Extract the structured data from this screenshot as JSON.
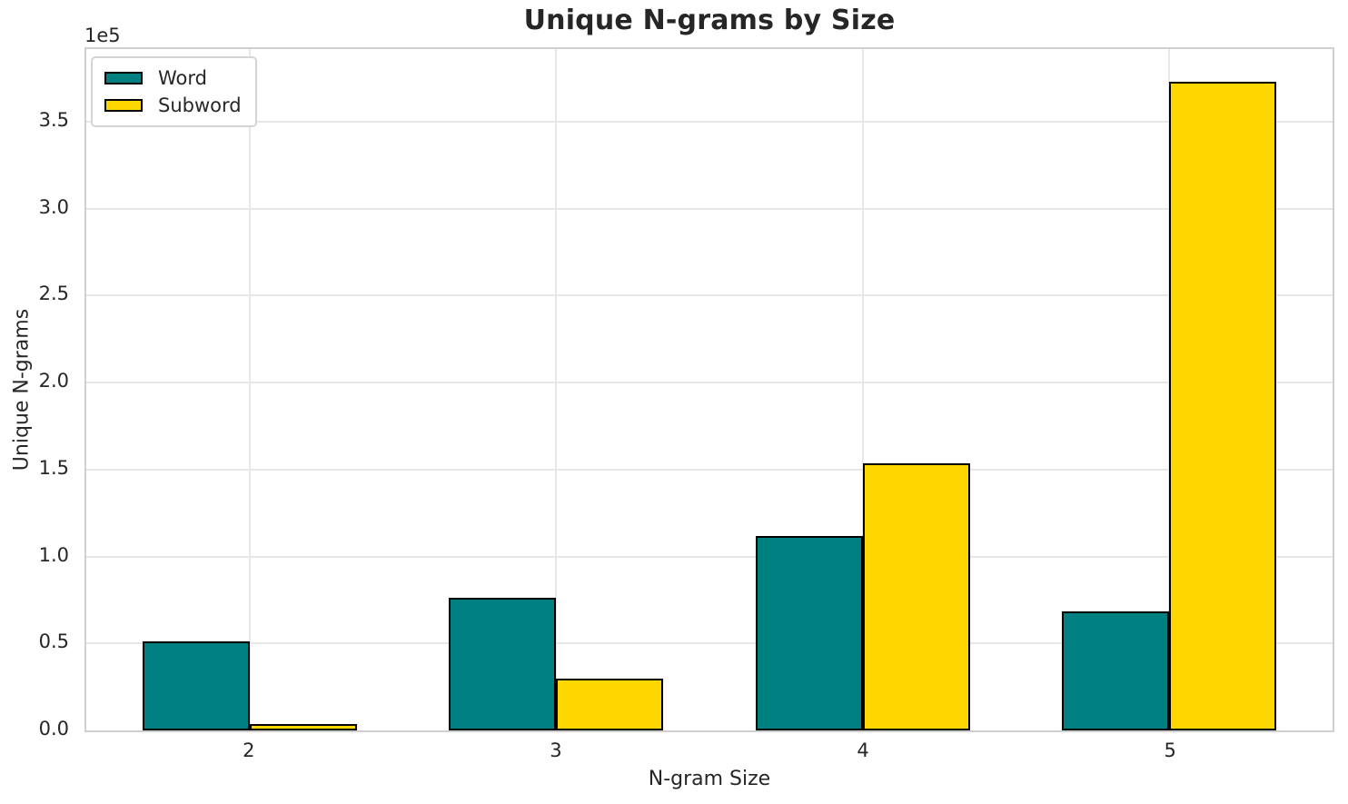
{
  "figure": {
    "title": "Unique N-grams by Size"
  },
  "axes": {
    "xlabel": "N-gram Size",
    "ylabel": "Unique N-grams",
    "y_offset_label": "1e5",
    "ytick_labels": [
      "0.0",
      "0.5",
      "1.0",
      "1.5",
      "2.0",
      "2.5",
      "3.0",
      "3.5"
    ],
    "xtick_labels": [
      "2",
      "3",
      "4",
      "5"
    ]
  },
  "legend": {
    "entries": [
      {
        "label": "Word",
        "color": "#008080"
      },
      {
        "label": "Subword",
        "color": "#FFD700"
      }
    ]
  },
  "chart_data": {
    "type": "bar",
    "title": "Unique N-grams by Size",
    "xlabel": "N-gram Size",
    "ylabel": "Unique N-grams",
    "y_offset_text": "1e5",
    "categories": [
      "2",
      "3",
      "4",
      "5"
    ],
    "series": [
      {
        "name": "Word",
        "color": "#008080",
        "values": [
          51000,
          76000,
          112000,
          68500
        ]
      },
      {
        "name": "Subword",
        "color": "#FFD700",
        "values": [
          3800,
          30000,
          153500,
          373000
        ]
      }
    ],
    "yticks": [
      0,
      50000,
      100000,
      150000,
      200000,
      250000,
      300000,
      350000
    ],
    "ylim": [
      0,
      391650
    ],
    "bar_width_data_units": 0.35,
    "x_margin_fraction": 0.05,
    "bar_edge_color": "#000000",
    "grid": true,
    "grid_color": "#e7e7e7",
    "spine_color": "#cfcfcf",
    "background_color": "#ffffff",
    "text_color": "#262626",
    "legend_position": "upper left"
  }
}
